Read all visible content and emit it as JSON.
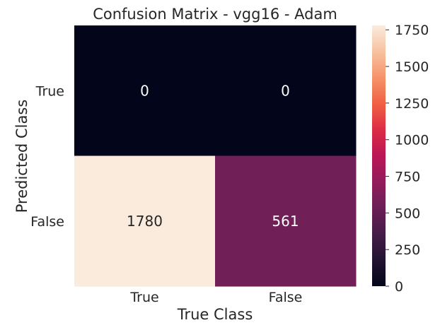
{
  "chart_data": {
    "type": "heatmap",
    "title": "Confusion Matrix - vgg16 - Adam",
    "xlabel": "True Class",
    "ylabel": "Predicted Class",
    "x_categories": [
      "True",
      "False"
    ],
    "y_categories": [
      "True",
      "False"
    ],
    "values": [
      [
        0,
        0
      ],
      [
        1780,
        561
      ]
    ],
    "colormap": "rocket",
    "colorbar": {
      "range": [
        0,
        1780
      ],
      "ticks": [
        0,
        250,
        500,
        750,
        1000,
        1250,
        1500,
        1750
      ],
      "tick_labels": [
        "0",
        "250",
        "500",
        "750",
        "1000",
        "1250",
        "1500",
        "1750"
      ]
    },
    "colors": {
      "low": "#03051a",
      "high": "#faebdd",
      "text_on_dark": "#ffffff",
      "text_on_light": "#262626"
    }
  }
}
